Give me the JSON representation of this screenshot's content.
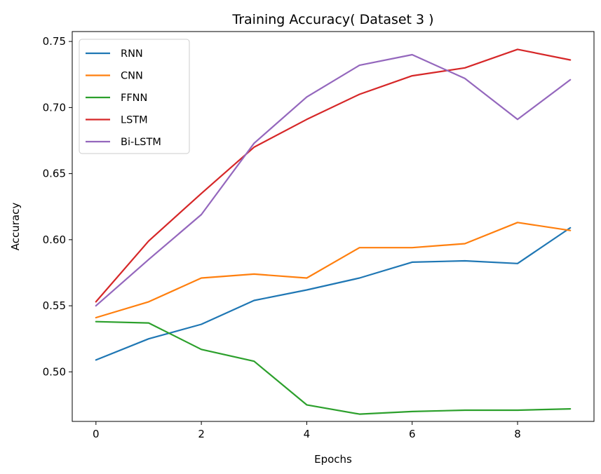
{
  "chart_data": {
    "type": "line",
    "title": "Training Accuracy( Dataset 3 )",
    "xlabel": "Epochs",
    "ylabel": "Accuracy",
    "xlim": [
      -0.45,
      9.45
    ],
    "ylim": [
      0.4625,
      0.7575
    ],
    "x": [
      0,
      1,
      2,
      3,
      4,
      5,
      6,
      7,
      8,
      9
    ],
    "xticks": [
      0,
      2,
      4,
      6,
      8
    ],
    "yticks": [
      0.5,
      0.55,
      0.6,
      0.65,
      0.7,
      0.75
    ],
    "ytick_labels": [
      "0.50",
      "0.55",
      "0.60",
      "0.65",
      "0.70",
      "0.75"
    ],
    "grid": false,
    "legend_position": "top-left",
    "series": [
      {
        "name": "RNN",
        "color": "#1f77b4",
        "values": [
          0.509,
          0.525,
          0.536,
          0.554,
          0.562,
          0.571,
          0.583,
          0.584,
          0.582,
          0.609
        ]
      },
      {
        "name": "CNN",
        "color": "#ff7f0e",
        "values": [
          0.541,
          0.553,
          0.571,
          0.574,
          0.571,
          0.594,
          0.594,
          0.597,
          0.613,
          0.607
        ]
      },
      {
        "name": "FFNN",
        "color": "#2ca02c",
        "values": [
          0.538,
          0.537,
          0.517,
          0.508,
          0.475,
          0.468,
          0.47,
          0.471,
          0.471,
          0.472
        ]
      },
      {
        "name": "LSTM",
        "color": "#d62728",
        "values": [
          0.553,
          0.599,
          0.635,
          0.67,
          0.691,
          0.71,
          0.724,
          0.73,
          0.744,
          0.736
        ]
      },
      {
        "name": "Bi-LSTM",
        "color": "#9467bd",
        "values": [
          0.55,
          0.585,
          0.619,
          0.673,
          0.708,
          0.732,
          0.74,
          0.722,
          0.691,
          0.721
        ]
      }
    ]
  }
}
